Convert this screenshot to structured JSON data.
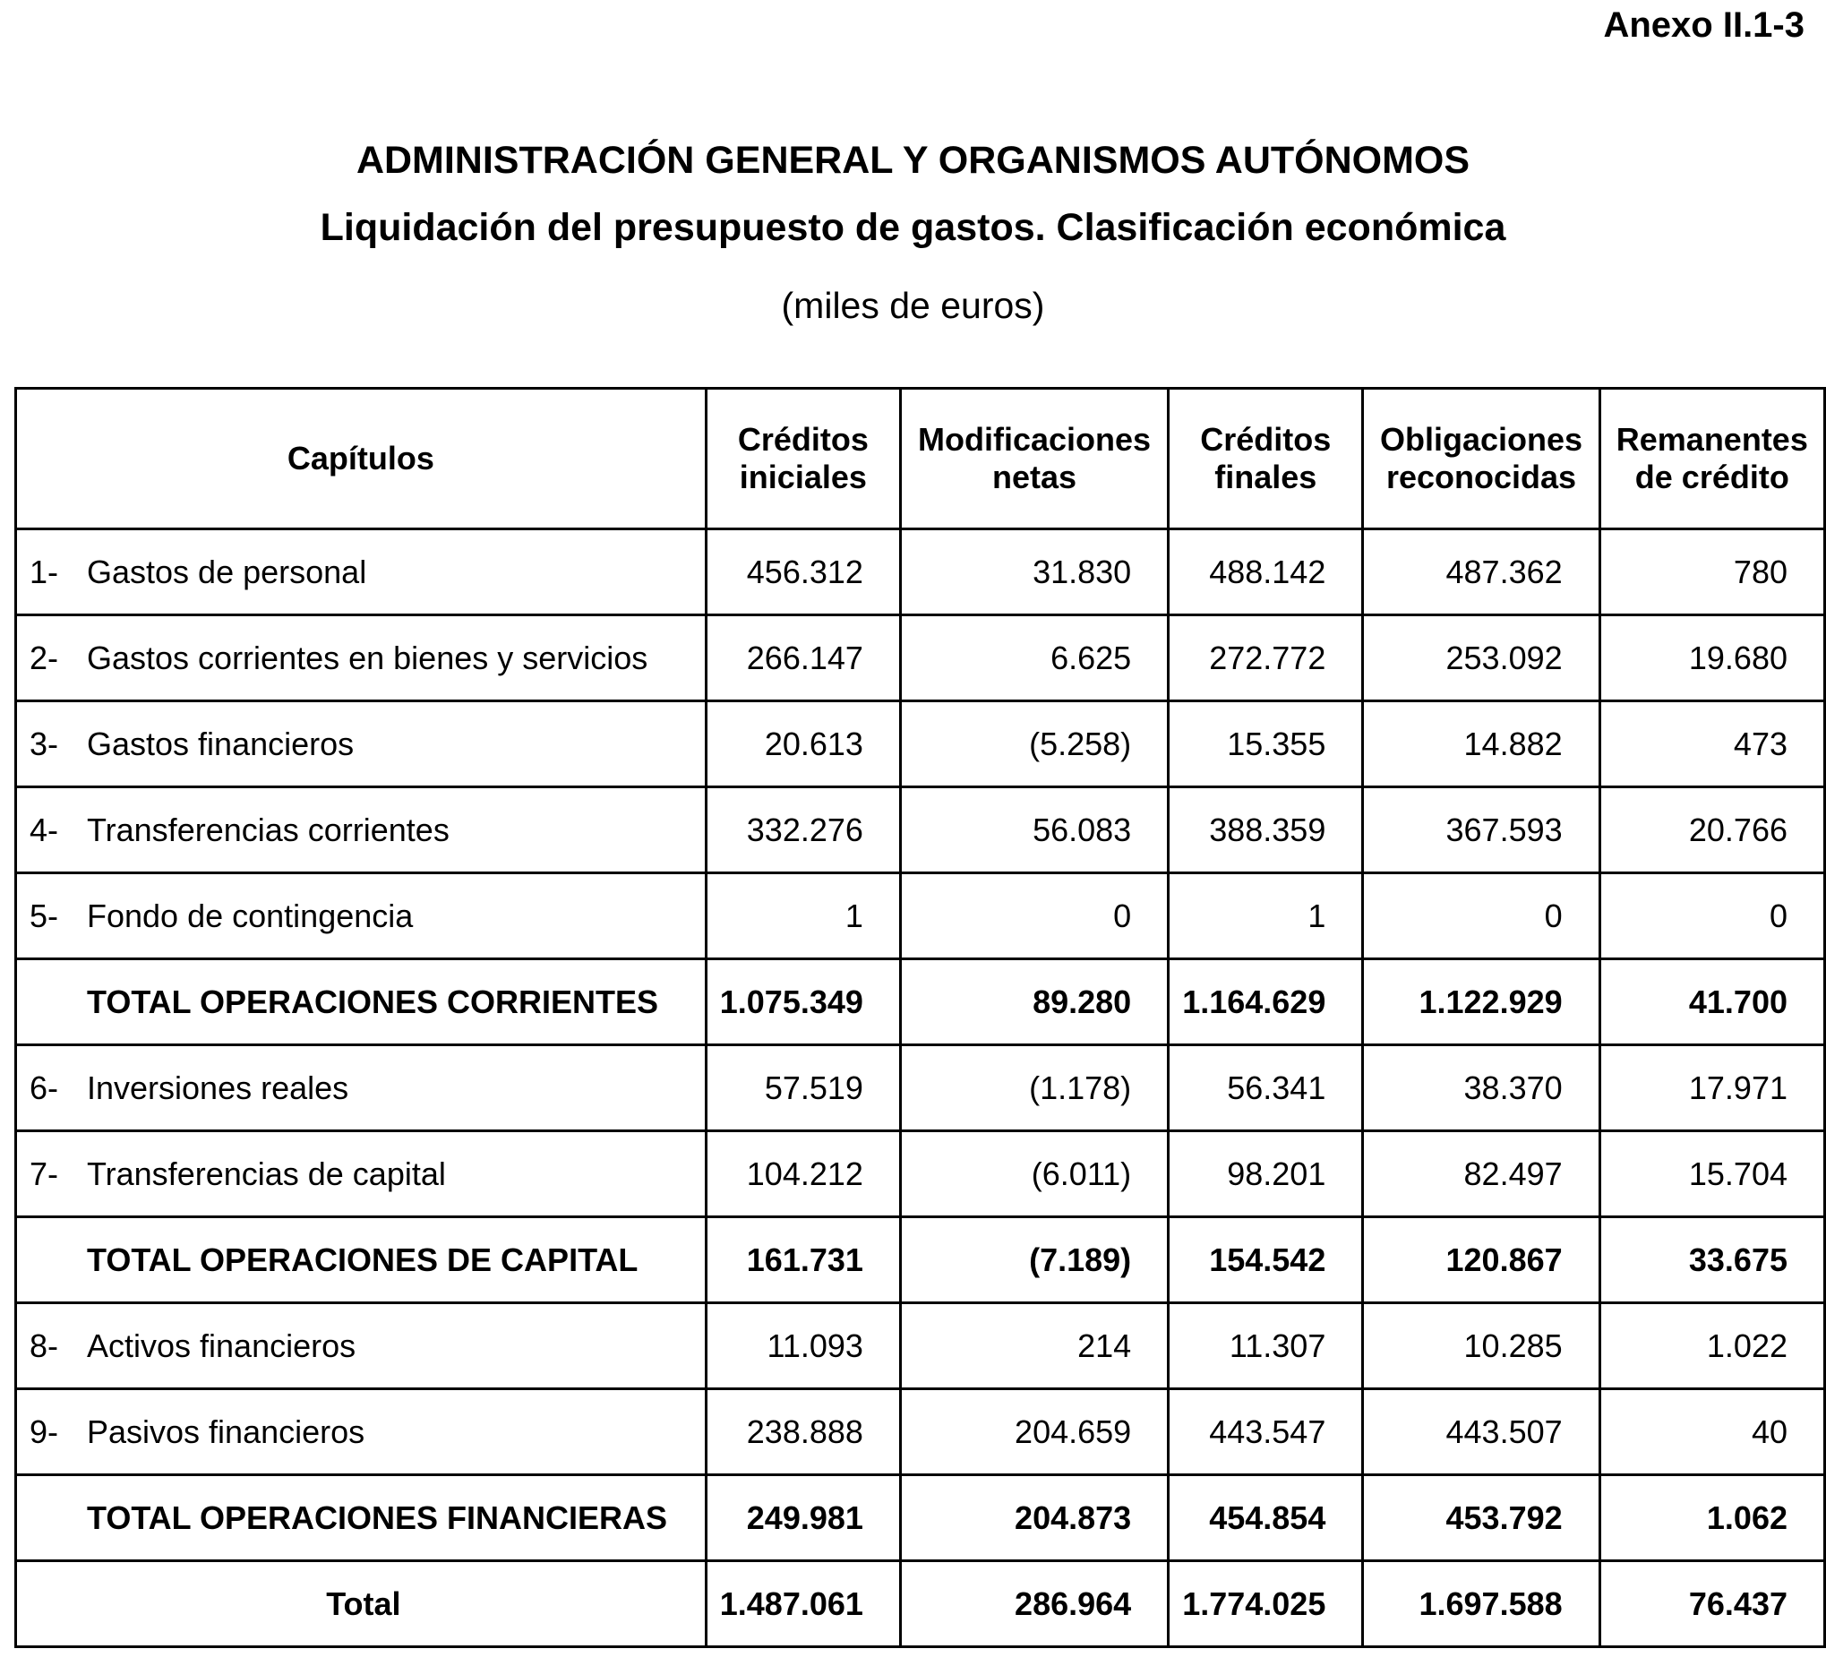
{
  "header": {
    "annex": "Anexo II.1-3",
    "title": "ADMINISTRACIÓN GENERAL Y ORGANISMOS AUTÓNOMOS",
    "subtitle": "Liquidación del presupuesto de gastos. Clasificación económica",
    "units": "(miles de euros)"
  },
  "table": {
    "columns": [
      "Capítulos",
      "Créditos iniciales",
      "Modificaciones netas",
      "Créditos finales",
      "Obligaciones reconocidas",
      "Remanentes de crédito"
    ],
    "rows": [
      {
        "number": "1-",
        "label": "Gastos de personal",
        "values": [
          "456.312",
          "31.830",
          "488.142",
          "487.362",
          "780"
        ]
      },
      {
        "number": "2-",
        "label": "Gastos corrientes en bienes y servicios",
        "values": [
          "266.147",
          "6.625",
          "272.772",
          "253.092",
          "19.680"
        ]
      },
      {
        "number": "3-",
        "label": "Gastos financieros",
        "values": [
          "20.613",
          "(5.258)",
          "15.355",
          "14.882",
          "473"
        ]
      },
      {
        "number": "4-",
        "label": "Transferencias corrientes",
        "values": [
          "332.276",
          "56.083",
          "388.359",
          "367.593",
          "20.766"
        ]
      },
      {
        "number": "5-",
        "label": "Fondo de contingencia",
        "values": [
          "1",
          "0",
          "1",
          "0",
          "0"
        ]
      },
      {
        "label": "TOTAL OPERACIONES CORRIENTES",
        "values": [
          "1.075.349",
          "89.280",
          "1.164.629",
          "1.122.929",
          "41.700"
        ]
      },
      {
        "number": "6-",
        "label": "Inversiones reales",
        "values": [
          "57.519",
          "(1.178)",
          "56.341",
          "38.370",
          "17.971"
        ]
      },
      {
        "number": "7-",
        "label": "Transferencias de capital",
        "values": [
          "104.212",
          "(6.011)",
          "98.201",
          "82.497",
          "15.704"
        ]
      },
      {
        "label": "TOTAL OPERACIONES DE CAPITAL",
        "values": [
          "161.731",
          "(7.189)",
          "154.542",
          "120.867",
          "33.675"
        ]
      },
      {
        "number": "8-",
        "label": "Activos financieros",
        "values": [
          "11.093",
          "214",
          "11.307",
          "10.285",
          "1.022"
        ]
      },
      {
        "number": "9-",
        "label": "Pasivos financieros",
        "values": [
          "238.888",
          "204.659",
          "443.547",
          "443.507",
          "40"
        ]
      },
      {
        "label": "TOTAL OPERACIONES FINANCIERAS",
        "values": [
          "249.981",
          "204.873",
          "454.854",
          "453.792",
          "1.062"
        ]
      }
    ],
    "total": {
      "label": "Total",
      "values": [
        "1.487.061",
        "286.964",
        "1.774.025",
        "1.697.588",
        "76.437"
      ]
    }
  }
}
